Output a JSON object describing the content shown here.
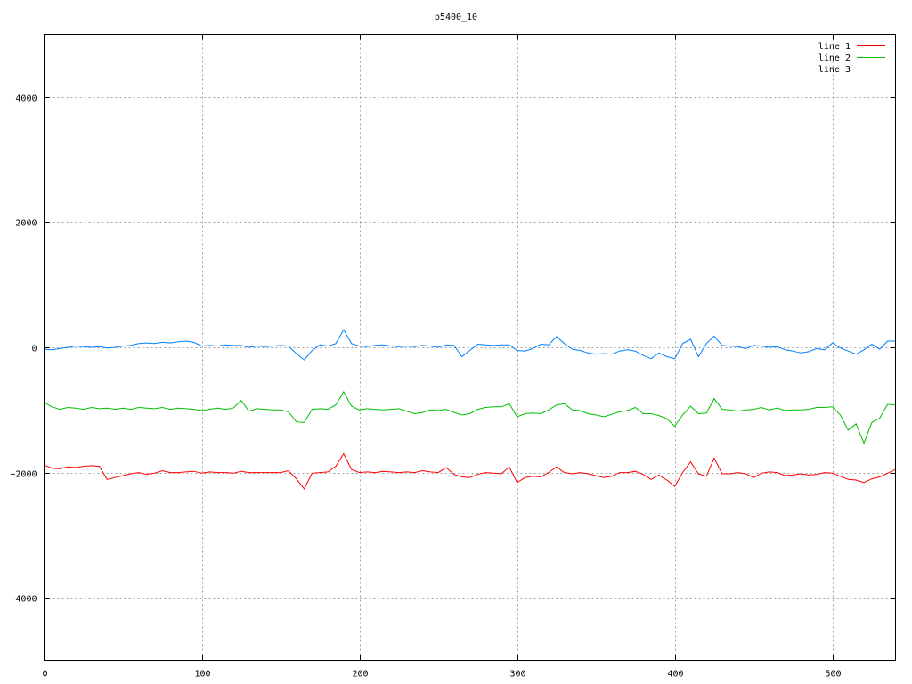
{
  "chart_data": {
    "type": "line",
    "title": "p5400_10",
    "xlabel": "",
    "ylabel": "",
    "xlim": [
      0,
      540
    ],
    "ylim": [
      -5000,
      5000
    ],
    "xticks": [
      "0",
      "100",
      "200",
      "300",
      "400",
      "500"
    ],
    "xtick_values": [
      0,
      100,
      200,
      300,
      400,
      500
    ],
    "yticks": [
      "−4000",
      "−2000",
      "0",
      "2000",
      "4000"
    ],
    "ytick_values": [
      -4000,
      -2000,
      0,
      2000,
      4000
    ],
    "grid": true,
    "legend_position": "top-right",
    "x_start": 0,
    "x_step": 5,
    "series": [
      {
        "name": "line 1",
        "color": "#ff0000",
        "values": [
          -1880,
          -1930,
          -1940,
          -1910,
          -1920,
          -1900,
          -1890,
          -1900,
          -2110,
          -2080,
          -2050,
          -2020,
          -2000,
          -2030,
          -2010,
          -1970,
          -2000,
          -2000,
          -1990,
          -1980,
          -2010,
          -1990,
          -2000,
          -2000,
          -2010,
          -1980,
          -2000,
          -2000,
          -2000,
          -2000,
          -2000,
          -1970,
          -2100,
          -2260,
          -2010,
          -2000,
          -1990,
          -1900,
          -1700,
          -1950,
          -2000,
          -1990,
          -2000,
          -1980,
          -1990,
          -2000,
          -1990,
          -2000,
          -1970,
          -1990,
          -2000,
          -1920,
          -2030,
          -2070,
          -2080,
          -2030,
          -2000,
          -2010,
          -2020,
          -1910,
          -2160,
          -2080,
          -2060,
          -2070,
          -2000,
          -1910,
          -2000,
          -2020,
          -2000,
          -2020,
          -2050,
          -2080,
          -2060,
          -2000,
          -2000,
          -1980,
          -2030,
          -2110,
          -2040,
          -2120,
          -2220,
          -2000,
          -1830,
          -2020,
          -2060,
          -1770,
          -2020,
          -2020,
          -2000,
          -2020,
          -2080,
          -2010,
          -1990,
          -2000,
          -2050,
          -2040,
          -2020,
          -2040,
          -2030,
          -2000,
          -2010,
          -2060,
          -2110,
          -2120,
          -2160,
          -2100,
          -2070,
          -2010,
          -1950
        ]
      },
      {
        "name": "line 2",
        "color": "#00c000",
        "values": [
          -880,
          -950,
          -990,
          -960,
          -970,
          -990,
          -960,
          -980,
          -970,
          -990,
          -970,
          -990,
          -960,
          -970,
          -980,
          -960,
          -990,
          -970,
          -980,
          -990,
          -1010,
          -990,
          -970,
          -990,
          -970,
          -850,
          -1020,
          -980,
          -990,
          -1000,
          -1000,
          -1030,
          -1190,
          -1200,
          -990,
          -980,
          -990,
          -920,
          -710,
          -940,
          -1000,
          -980,
          -990,
          -1000,
          -990,
          -980,
          -1020,
          -1060,
          -1040,
          -1000,
          -1010,
          -990,
          -1040,
          -1080,
          -1060,
          -990,
          -960,
          -950,
          -950,
          -900,
          -1110,
          -1060,
          -1050,
          -1060,
          -1000,
          -920,
          -900,
          -1000,
          -1010,
          -1060,
          -1080,
          -1110,
          -1070,
          -1030,
          -1010,
          -960,
          -1060,
          -1060,
          -1090,
          -1140,
          -1260,
          -1080,
          -940,
          -1060,
          -1050,
          -820,
          -990,
          -1000,
          -1020,
          -1000,
          -990,
          -960,
          -1000,
          -970,
          -1010,
          -1000,
          -1000,
          -990,
          -960,
          -960,
          -950,
          -1080,
          -1320,
          -1220,
          -1530,
          -1200,
          -1130,
          -910,
          -920
        ]
      },
      {
        "name": "line 3",
        "color": "#0080ff",
        "values": [
          -30,
          -40,
          -20,
          0,
          20,
          10,
          0,
          10,
          -10,
          0,
          20,
          30,
          60,
          70,
          60,
          80,
          70,
          90,
          100,
          80,
          20,
          30,
          20,
          40,
          30,
          30,
          0,
          20,
          10,
          20,
          30,
          20,
          -100,
          -200,
          -50,
          40,
          20,
          60,
          280,
          60,
          20,
          10,
          30,
          40,
          20,
          10,
          20,
          10,
          30,
          20,
          0,
          40,
          30,
          -150,
          -50,
          50,
          40,
          30,
          40,
          40,
          -50,
          -60,
          -20,
          50,
          40,
          170,
          60,
          -30,
          -50,
          -90,
          -110,
          -100,
          -110,
          -60,
          -40,
          -60,
          -130,
          -180,
          -90,
          -150,
          -180,
          60,
          130,
          -150,
          60,
          180,
          30,
          20,
          10,
          -20,
          30,
          20,
          0,
          10,
          -40,
          -60,
          -90,
          -70,
          -20,
          -40,
          70,
          -10,
          -60,
          -110,
          -40,
          50,
          -30,
          100,
          100
        ]
      }
    ]
  }
}
